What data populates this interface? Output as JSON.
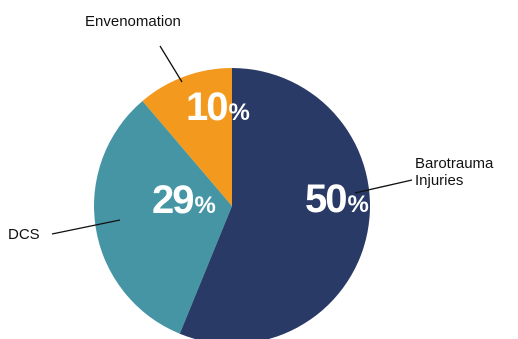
{
  "chart_data": {
    "type": "pie",
    "slices": [
      {
        "label": "Barotrauma\nInjuries",
        "value": 50,
        "display": "50",
        "color": "#2a3a66"
      },
      {
        "label": "DCS",
        "value": 29,
        "display": "29",
        "color": "#4595a5"
      },
      {
        "label": "Envenomation",
        "value": 10,
        "display": "10",
        "color": "#f39a1e"
      }
    ],
    "percent_sign": "%",
    "start_angle_deg": 0,
    "direction": "clockwise"
  }
}
